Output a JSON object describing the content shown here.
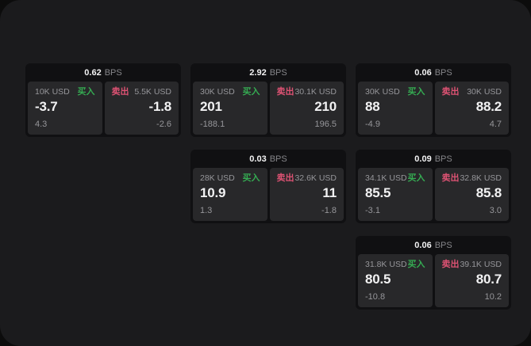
{
  "labels": {
    "bps": "BPS",
    "buy": "买入",
    "sell": "卖出"
  },
  "colors": {
    "buy": "#35ab52",
    "sell": "#dd5273",
    "backdrop": "#0c0c0c",
    "window_bg": "#1b1b1d",
    "card_bg": "#101012",
    "panel_bg": "#28282a"
  },
  "cards": [
    {
      "row": 1,
      "col": 1,
      "bps": "0.62",
      "buy": {
        "size": "10K USD",
        "price": "-3.7",
        "delta": "4.3"
      },
      "sell": {
        "size": "5.5K USD",
        "price": "-1.8",
        "delta": "-2.6"
      }
    },
    {
      "row": 1,
      "col": 2,
      "bps": "2.92",
      "buy": {
        "size": "30K USD",
        "price": "201",
        "delta": "-188.1"
      },
      "sell": {
        "size": "30.1K USD",
        "price": "210",
        "delta": "196.5"
      }
    },
    {
      "row": 1,
      "col": 3,
      "bps": "0.06",
      "buy": {
        "size": "30K USD",
        "price": "88",
        "delta": "-4.9"
      },
      "sell": {
        "size": "30K USD",
        "price": "88.2",
        "delta": "4.7"
      }
    },
    {
      "row": 2,
      "col": 2,
      "bps": "0.03",
      "buy": {
        "size": "28K USD",
        "price": "10.9",
        "delta": "1.3"
      },
      "sell": {
        "size": "32.6K USD",
        "price": "11",
        "delta": "-1.8"
      }
    },
    {
      "row": 2,
      "col": 3,
      "bps": "0.09",
      "buy": {
        "size": "34.1K USD",
        "price": "85.5",
        "delta": "-3.1"
      },
      "sell": {
        "size": "32.8K USD",
        "price": "85.8",
        "delta": "3.0"
      }
    },
    {
      "row": 3,
      "col": 3,
      "bps": "0.06",
      "buy": {
        "size": "31.8K USD",
        "price": "80.5",
        "delta": "-10.8"
      },
      "sell": {
        "size": "39.1K USD",
        "price": "80.7",
        "delta": "10.2"
      }
    }
  ]
}
